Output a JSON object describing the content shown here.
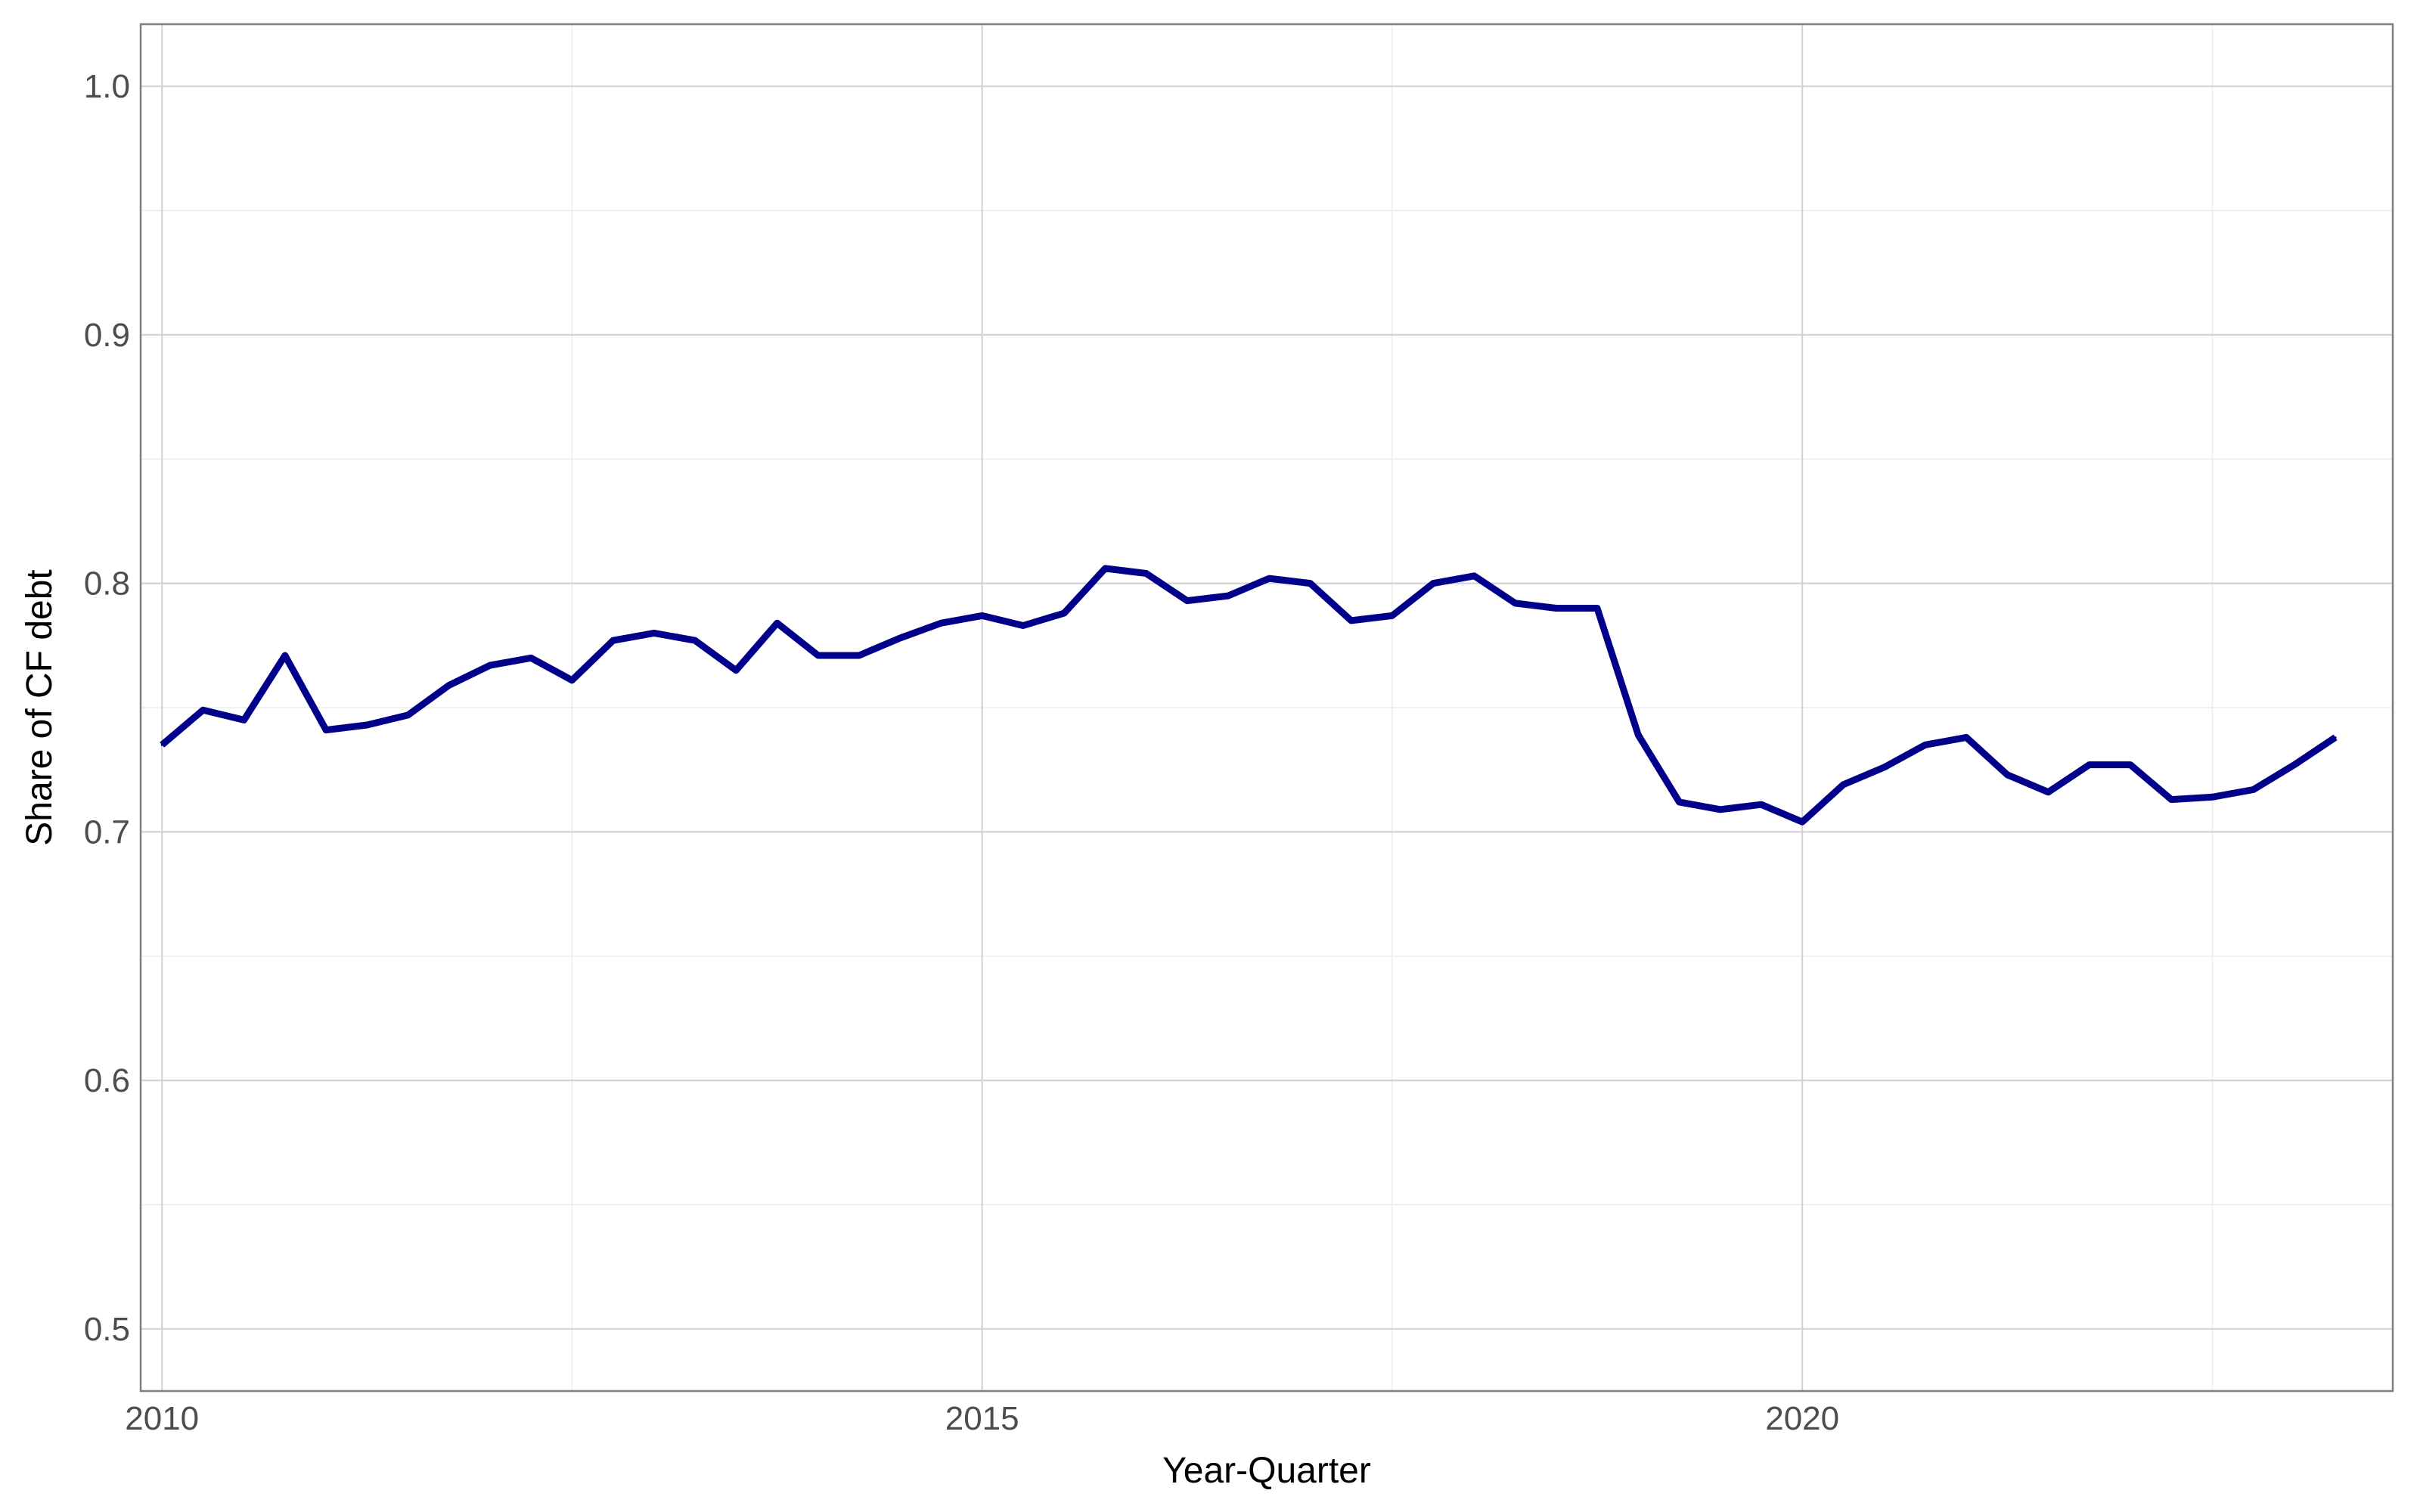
{
  "chart_data": {
    "type": "line",
    "title": "",
    "xlabel": "Year-Quarter",
    "ylabel": "Share of CF debt",
    "x_range": [
      2009.87,
      2023.6
    ],
    "ylim": [
      0.475,
      1.025
    ],
    "x_ticks": [
      2010,
      2015,
      2020
    ],
    "x_tick_labels": [
      "2010",
      "2015",
      "2020"
    ],
    "y_ticks": [
      0.5,
      0.6,
      0.7,
      0.8,
      0.9,
      1.0
    ],
    "y_tick_labels": [
      "0.5",
      "0.6",
      "0.7",
      "0.8",
      "0.9",
      "1.0"
    ],
    "grid": true,
    "legend": "none",
    "colors": {
      "line": "#00008B",
      "grid_major": "#d4d4d4",
      "grid_minor": "#ececec",
      "panel_border": "#7f7f7f"
    },
    "series": [
      {
        "x": [
          2010.0,
          2010.25,
          2010.5,
          2010.75,
          2011.0,
          2011.25,
          2011.5,
          2011.75,
          2012.0,
          2012.25,
          2012.5,
          2012.75,
          2013.0,
          2013.25,
          2013.5,
          2013.75,
          2014.0,
          2014.25,
          2014.5,
          2014.75,
          2015.0,
          2015.25,
          2015.5,
          2015.75,
          2016.0,
          2016.25,
          2016.5,
          2016.75,
          2017.0,
          2017.25,
          2017.5,
          2017.75,
          2018.0,
          2018.25,
          2018.5,
          2018.75,
          2019.0,
          2019.25,
          2019.5,
          2019.75,
          2020.0,
          2020.25,
          2020.5,
          2020.75,
          2021.0,
          2021.25,
          2021.5,
          2021.75,
          2022.0,
          2022.25,
          2022.5,
          2022.75,
          2023.0,
          2023.25
        ],
        "values": [
          0.735,
          0.749,
          0.745,
          0.771,
          0.741,
          0.743,
          0.747,
          0.759,
          0.767,
          0.77,
          0.761,
          0.777,
          0.78,
          0.777,
          0.765,
          0.784,
          0.771,
          0.771,
          0.778,
          0.784,
          0.787,
          0.783,
          0.788,
          0.806,
          0.804,
          0.793,
          0.795,
          0.802,
          0.8,
          0.785,
          0.787,
          0.8,
          0.803,
          0.792,
          0.79,
          0.79,
          0.739,
          0.712,
          0.709,
          0.711,
          0.704,
          0.719,
          0.726,
          0.735,
          0.738,
          0.723,
          0.716,
          0.727,
          0.727,
          0.713,
          0.714,
          0.717,
          0.727,
          0.738
        ]
      }
    ]
  }
}
